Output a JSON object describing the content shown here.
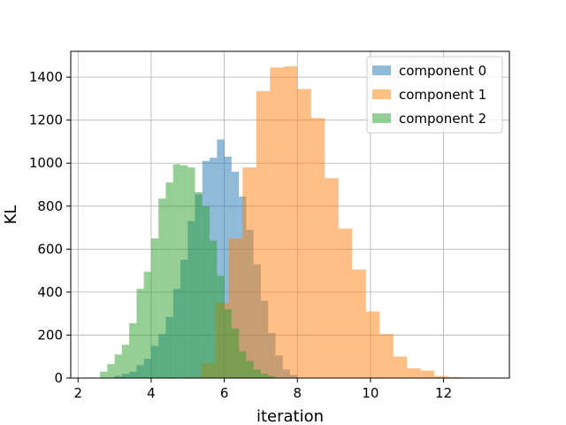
{
  "chart_data": {
    "type": "histogram",
    "xlabel": "iteration",
    "ylabel": "KL",
    "xlim": [
      1.8,
      13.8
    ],
    "ylim": [
      0,
      1520
    ],
    "x_ticks": [
      2,
      4,
      6,
      8,
      10,
      12
    ],
    "y_ticks": [
      0,
      200,
      400,
      600,
      800,
      1000,
      1200,
      1400
    ],
    "grid": true,
    "legend_position": "top-right",
    "series": [
      {
        "name": "component 0",
        "color": "#1f77b4",
        "opacity": 0.5,
        "bins": [
          {
            "x0": 2.6,
            "x1": 2.8,
            "count": 0
          },
          {
            "x0": 3.0,
            "x1": 3.2,
            "count": 10
          },
          {
            "x0": 3.2,
            "x1": 3.4,
            "count": 20
          },
          {
            "x0": 3.4,
            "x1": 3.6,
            "count": 30
          },
          {
            "x0": 3.6,
            "x1": 3.8,
            "count": 60
          },
          {
            "x0": 3.8,
            "x1": 4.0,
            "count": 90
          },
          {
            "x0": 4.0,
            "x1": 4.2,
            "count": 150
          },
          {
            "x0": 4.2,
            "x1": 4.4,
            "count": 205
          },
          {
            "x0": 4.4,
            "x1": 4.6,
            "count": 285
          },
          {
            "x0": 4.6,
            "x1": 4.8,
            "count": 415
          },
          {
            "x0": 4.8,
            "x1": 5.0,
            "count": 550
          },
          {
            "x0": 5.0,
            "x1": 5.2,
            "count": 730
          },
          {
            "x0": 5.2,
            "x1": 5.4,
            "count": 855
          },
          {
            "x0": 5.4,
            "x1": 5.6,
            "count": 1010
          },
          {
            "x0": 5.6,
            "x1": 5.8,
            "count": 1025
          },
          {
            "x0": 5.8,
            "x1": 6.0,
            "count": 1110
          },
          {
            "x0": 6.0,
            "x1": 6.2,
            "count": 1030
          },
          {
            "x0": 6.2,
            "x1": 6.4,
            "count": 960
          },
          {
            "x0": 6.4,
            "x1": 6.6,
            "count": 845
          },
          {
            "x0": 6.6,
            "x1": 6.8,
            "count": 690
          },
          {
            "x0": 6.8,
            "x1": 7.0,
            "count": 530
          },
          {
            "x0": 7.0,
            "x1": 7.2,
            "count": 360
          },
          {
            "x0": 7.2,
            "x1": 7.4,
            "count": 210
          },
          {
            "x0": 7.4,
            "x1": 7.6,
            "count": 105
          },
          {
            "x0": 7.6,
            "x1": 7.8,
            "count": 40
          },
          {
            "x0": 7.8,
            "x1": 8.0,
            "count": 15
          }
        ]
      },
      {
        "name": "component 1",
        "color": "#ff7f0e",
        "opacity": 0.5,
        "bins": [
          {
            "x0": 5.0,
            "x1": 5.375,
            "count": 5
          },
          {
            "x0": 5.375,
            "x1": 5.75,
            "count": 70
          },
          {
            "x0": 5.75,
            "x1": 6.125,
            "count": 350
          },
          {
            "x0": 6.125,
            "x1": 6.5,
            "count": 650
          },
          {
            "x0": 6.5,
            "x1": 6.875,
            "count": 980
          },
          {
            "x0": 6.875,
            "x1": 7.25,
            "count": 1335
          },
          {
            "x0": 7.25,
            "x1": 7.625,
            "count": 1445
          },
          {
            "x0": 7.625,
            "x1": 8.0,
            "count": 1450
          },
          {
            "x0": 8.0,
            "x1": 8.375,
            "count": 1345
          },
          {
            "x0": 8.375,
            "x1": 8.75,
            "count": 1210
          },
          {
            "x0": 8.75,
            "x1": 9.125,
            "count": 930
          },
          {
            "x0": 9.125,
            "x1": 9.5,
            "count": 695
          },
          {
            "x0": 9.5,
            "x1": 9.875,
            "count": 505
          },
          {
            "x0": 9.875,
            "x1": 10.25,
            "count": 310
          },
          {
            "x0": 10.25,
            "x1": 10.625,
            "count": 205
          },
          {
            "x0": 10.625,
            "x1": 11.0,
            "count": 100
          },
          {
            "x0": 11.0,
            "x1": 11.375,
            "count": 45
          },
          {
            "x0": 11.375,
            "x1": 11.75,
            "count": 35
          },
          {
            "x0": 11.75,
            "x1": 12.125,
            "count": 10
          },
          {
            "x0": 12.125,
            "x1": 12.5,
            "count": 5
          },
          {
            "x0": 12.5,
            "x1": 12.875,
            "count": 3
          },
          {
            "x0": 12.875,
            "x1": 13.25,
            "count": 2
          }
        ]
      },
      {
        "name": "component 2",
        "color": "#2ca02c",
        "opacity": 0.5,
        "bins": [
          {
            "x0": 2.6,
            "x1": 2.8,
            "count": 30
          },
          {
            "x0": 2.8,
            "x1": 3.0,
            "count": 65
          },
          {
            "x0": 3.0,
            "x1": 3.2,
            "count": 110
          },
          {
            "x0": 3.2,
            "x1": 3.4,
            "count": 155
          },
          {
            "x0": 3.4,
            "x1": 3.6,
            "count": 255
          },
          {
            "x0": 3.6,
            "x1": 3.8,
            "count": 415
          },
          {
            "x0": 3.8,
            "x1": 4.0,
            "count": 495
          },
          {
            "x0": 4.0,
            "x1": 4.2,
            "count": 650
          },
          {
            "x0": 4.2,
            "x1": 4.4,
            "count": 835
          },
          {
            "x0": 4.4,
            "x1": 4.6,
            "count": 910
          },
          {
            "x0": 4.6,
            "x1": 4.8,
            "count": 995
          },
          {
            "x0": 4.8,
            "x1": 5.0,
            "count": 990
          },
          {
            "x0": 5.0,
            "x1": 5.2,
            "count": 980
          },
          {
            "x0": 5.2,
            "x1": 5.4,
            "count": 865
          },
          {
            "x0": 5.4,
            "x1": 5.6,
            "count": 800
          },
          {
            "x0": 5.6,
            "x1": 5.8,
            "count": 640
          },
          {
            "x0": 5.8,
            "x1": 6.0,
            "count": 475
          },
          {
            "x0": 6.0,
            "x1": 6.2,
            "count": 320
          },
          {
            "x0": 6.2,
            "x1": 6.4,
            "count": 230
          },
          {
            "x0": 6.4,
            "x1": 6.6,
            "count": 125
          },
          {
            "x0": 6.6,
            "x1": 6.8,
            "count": 80
          },
          {
            "x0": 6.8,
            "x1": 7.0,
            "count": 40
          },
          {
            "x0": 7.0,
            "x1": 7.2,
            "count": 20
          },
          {
            "x0": 7.2,
            "x1": 7.4,
            "count": 10
          }
        ]
      }
    ]
  }
}
